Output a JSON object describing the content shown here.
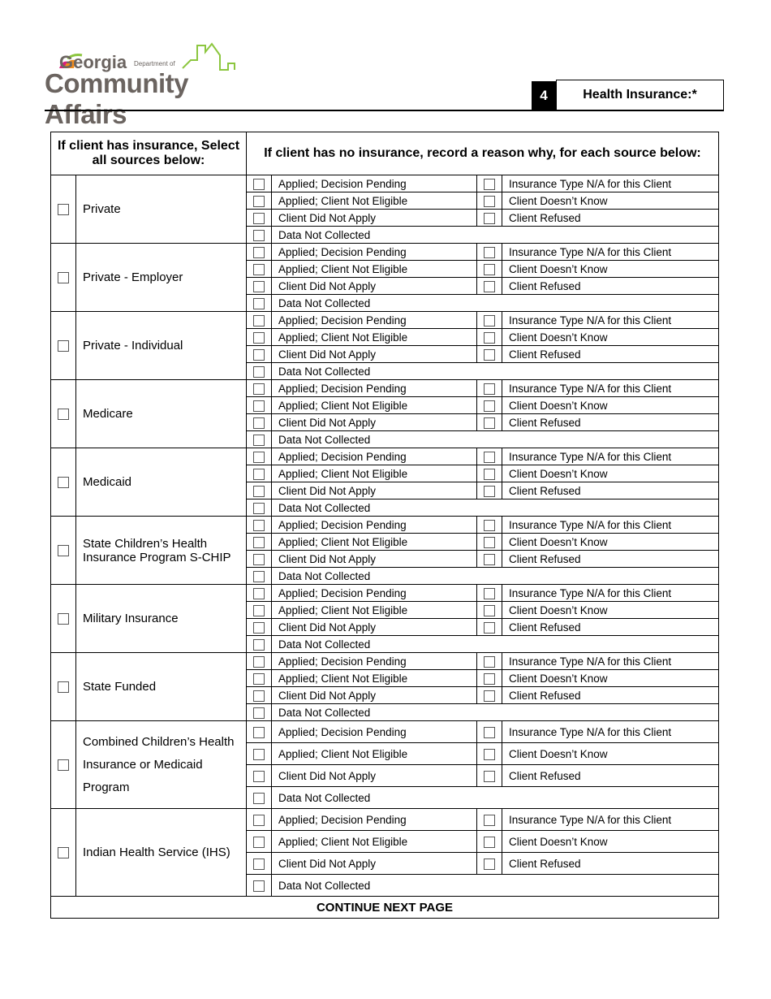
{
  "logo": {
    "text_line1": "Georgia",
    "text_dept": "Department of",
    "text_line2": "Community Affairs"
  },
  "section": {
    "number": "4",
    "title": "Health Insurance:*"
  },
  "table": {
    "header_left": "If client has insurance, Select all sources below:",
    "header_right": "If client has no insurance, record a reason why, for each source below:",
    "reasons_left": [
      "Applied; Decision Pending",
      "Applied; Client Not Eligible",
      "Client Did Not Apply",
      "Data Not Collected"
    ],
    "reasons_right": [
      "Insurance Type N/A for this Client",
      "Client Doesn’t Know",
      "Client Refused"
    ],
    "sources": [
      "Private",
      "Private - Employer",
      "Private - Individual",
      "Medicare",
      "Medicaid",
      "State Children’s Health Insurance Program S-CHIP",
      "Military Insurance",
      "State Funded",
      "Combined Children’s Health Insurance or Medicaid Program",
      "Indian Health Service (IHS)"
    ],
    "footer": "CONTINUE NEXT PAGE"
  }
}
